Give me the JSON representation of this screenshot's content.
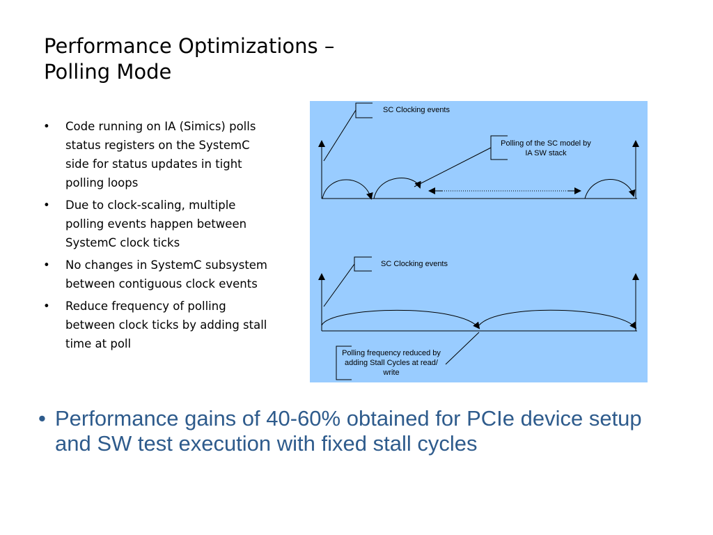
{
  "title": {
    "line1": "Performance Optimizations –",
    "line2": "Polling Mode"
  },
  "bullets": [
    "Code running on IA (Simics) polls status registers on the SystemC side for status updates in tight polling loops",
    "Due to clock-scaling, multiple polling events happen between SystemC clock ticks",
    "No changes in SystemC subsystem between contiguous clock events",
    "Reduce frequency of polling between clock ticks by adding stall time at poll"
  ],
  "bullet_glyph": "•",
  "diagram": {
    "top_label_clock": "SC Clocking events",
    "top_label_polling_line1": "Polling of the SC model by",
    "top_label_polling_line2": "IA SW stack",
    "bottom_label_clock": "SC Clocking events",
    "bottom_label_reduced_line1": "Polling frequency reduced by",
    "bottom_label_reduced_line2": "adding Stall Cycles at read/",
    "bottom_label_reduced_line3": "write",
    "background_color": "#99ccff"
  },
  "conclusion": "Performance gains of 40-60% obtained for PCIe device setup and SW test execution with fixed stall cycles"
}
